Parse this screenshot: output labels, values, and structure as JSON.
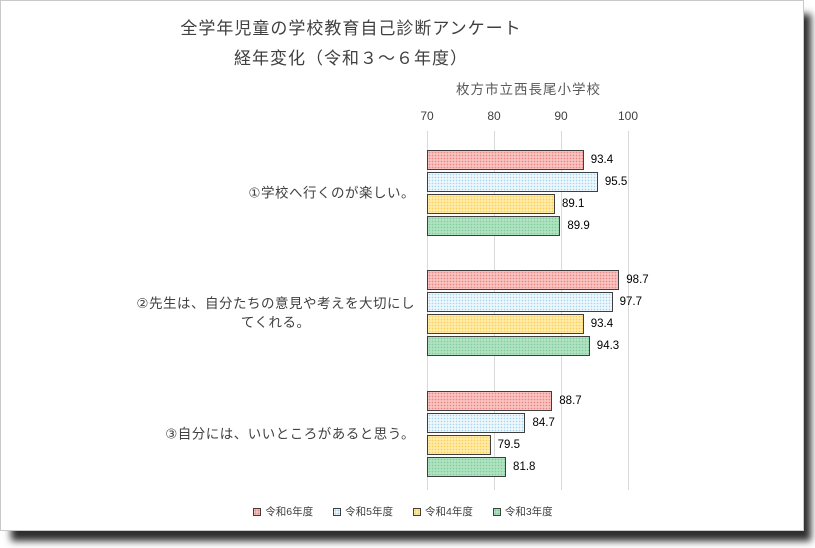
{
  "page": {
    "title_line1": "全学年児童の学校教育自己診断アンケート",
    "title_line2": "経年変化（令和３～６年度）",
    "subtitle": "枚方市立西長尾小学校"
  },
  "chart_data": {
    "type": "bar",
    "orientation": "horizontal",
    "title": "全学年児童の学校教育自己診断アンケート 経年変化（令和３～６年度）",
    "subtitle": "枚方市立西長尾小学校",
    "categories": [
      {
        "lines": [
          "①学校へ行くのが楽しい。"
        ]
      },
      {
        "lines": [
          "②先生は、自分たちの意見や考えを大切にし",
          "てくれる。"
        ]
      },
      {
        "lines": [
          "③自分には、いいところがあると思う。"
        ]
      }
    ],
    "series": [
      {
        "name": "令和6年度",
        "values": [
          93.4,
          98.7,
          88.7
        ],
        "base_color": "#f8c3c0",
        "dot_color": "#ec847e",
        "border_color": "#3f3f3f"
      },
      {
        "name": "令和5年度",
        "values": [
          95.5,
          97.7,
          84.7
        ],
        "base_color": "#eef7fc",
        "dot_color": "#a3d5ee",
        "border_color": "#3f3f3f"
      },
      {
        "name": "令和4年度",
        "values": [
          89.1,
          93.4,
          79.5
        ],
        "base_color": "#ffeaa6",
        "dot_color": "#f9cf58",
        "border_color": "#3f3f3f"
      },
      {
        "name": "令和3年度",
        "values": [
          89.9,
          94.3,
          81.8
        ],
        "base_color": "#aee2c0",
        "dot_color": "#7fcd9d",
        "border_color": "#3f3f3f"
      }
    ],
    "x_axis": {
      "min": 70,
      "max": 100,
      "ticks": [
        70,
        80,
        90,
        100
      ],
      "position": "top"
    },
    "value_labels": true,
    "value_label_decimals": 1,
    "grid": true,
    "legend_position": "bottom",
    "gridline_color": "#d9d9d9"
  }
}
